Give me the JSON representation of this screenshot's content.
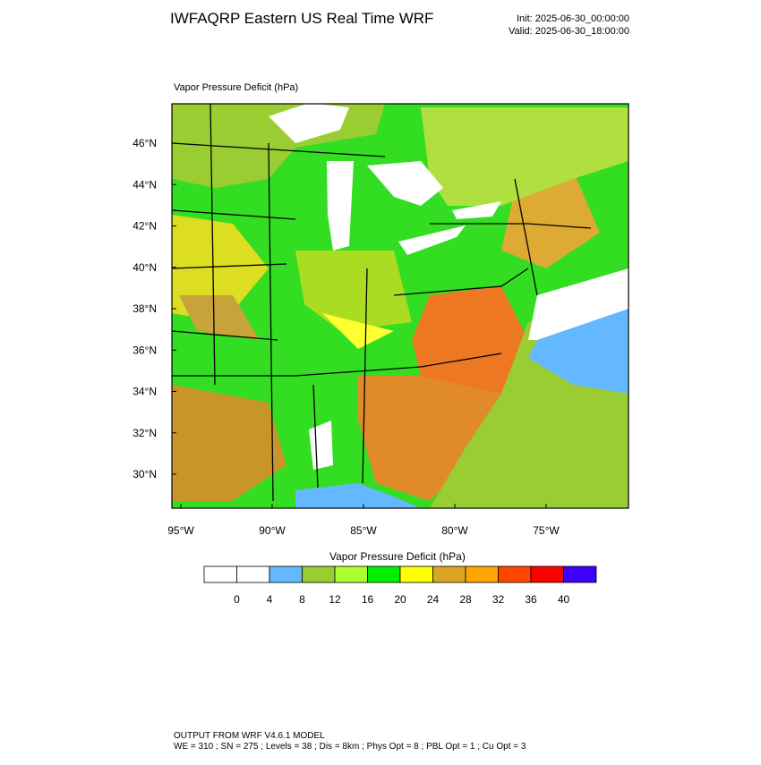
{
  "header": {
    "title": "IWFAQRP Eastern US Real Time WRF",
    "init": "Init: 2025-06-30_00:00:00",
    "valid": "Valid: 2025-06-30_18:00:00"
  },
  "map": {
    "label": "Vapor Pressure Deficit   (hPa)",
    "lat_labels": [
      "46°N",
      "44°N",
      "42°N",
      "40°N",
      "38°N",
      "36°N",
      "34°N",
      "32°N",
      "30°N"
    ],
    "lon_labels": [
      "95°W",
      "90°W",
      "85°W",
      "80°W",
      "75°W"
    ]
  },
  "colorbar": {
    "title": "Vapor Pressure Deficit  (hPa)",
    "levels": [
      0,
      4,
      8,
      12,
      16,
      20,
      24,
      28,
      32,
      36,
      40
    ],
    "colors": [
      "#ffffff",
      "#ffffff",
      "#63b8ff",
      "#9acd32",
      "#adff2f",
      "#00ee00",
      "#ffff00",
      "#daa520",
      "#ffa500",
      "#ff4500",
      "#ff0000",
      "#3d00ff"
    ]
  },
  "footer": {
    "line1": "OUTPUT FROM WRF V4.6.1 MODEL",
    "line2": "WE = 310 ; SN = 275 ; Levels = 38 ; Dis = 8km ; Phys Opt = 8 ; PBL Opt = 1 ; Cu Opt = 3"
  }
}
